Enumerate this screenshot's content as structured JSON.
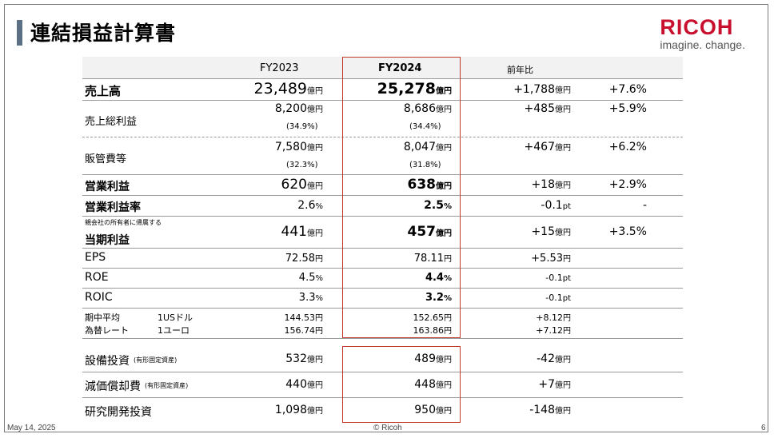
{
  "title": "連結損益計算書",
  "brand": {
    "word": "RICOH",
    "tagline": "imagine. change."
  },
  "header": {
    "fy2023": "FY2023",
    "fy2024": "FY2024",
    "yoy": "前年比"
  },
  "rows": {
    "sales": {
      "label": "売上高",
      "v1": "23,489",
      "v2": "25,278",
      "diff": "+1,788",
      "pct": "+7.6%"
    },
    "gross": {
      "label": "売上総利益",
      "v1": "8,200",
      "v1r": "(34.9%)",
      "v2": "8,686",
      "v2r": "(34.4%)",
      "diff": "+485",
      "pct": "+5.9%"
    },
    "sga": {
      "label": "販管費等",
      "v1": "7,580",
      "v1r": "(32.3%)",
      "v2": "8,047",
      "v2r": "(31.8%)",
      "diff": "+467",
      "pct": "+6.2%"
    },
    "op": {
      "label": "営業利益",
      "v1": "620",
      "v2": "638",
      "diff": "+18",
      "pct": "+2.9%"
    },
    "opr": {
      "label": "営業利益率",
      "v1": "2.6",
      "v2": "2.5",
      "diff": "-0.1",
      "pct": "-"
    },
    "net": {
      "label_small": "親会社の所有者に帰属する",
      "label": "当期利益",
      "v1": "441",
      "v2": "457",
      "diff": "+15",
      "pct": "+3.5%"
    },
    "eps": {
      "label": "EPS",
      "v1": "72.58",
      "v2": "78.11",
      "diff": "+5.53"
    },
    "roe": {
      "label": "ROE",
      "v1": "4.5",
      "v2": "4.4",
      "diff": "-0.1"
    },
    "roic": {
      "label": "ROIC",
      "v1": "3.3",
      "v2": "3.2",
      "diff": "-0.1"
    },
    "fx": {
      "label1": "期中平均",
      "label2": "為替レート",
      "usd": "1USドル",
      "eur": "1ユーロ",
      "usd_v1": "144.53",
      "usd_v2": "152.65",
      "usd_diff": "+8.12",
      "eur_v1": "156.74",
      "eur_v2": "163.86",
      "eur_diff": "+7.12"
    },
    "capex": {
      "label": "設備投資",
      "note": "(有形固定資産)",
      "v1": "532",
      "v2": "489",
      "diff": "-42"
    },
    "dep": {
      "label": "減価償却費",
      "note": "(有形固定資産)",
      "v1": "440",
      "v2": "448",
      "diff": "+7"
    },
    "rnd": {
      "label": "研究開発投資",
      "v1": "1,098",
      "v2": "950",
      "diff": "-148"
    }
  },
  "units": {
    "oku": "億円",
    "en": "円",
    "pct": "%",
    "pt": "pt"
  },
  "footer": {
    "date": "May 14, 2025",
    "copyright": "© Ricoh",
    "page": "6"
  }
}
